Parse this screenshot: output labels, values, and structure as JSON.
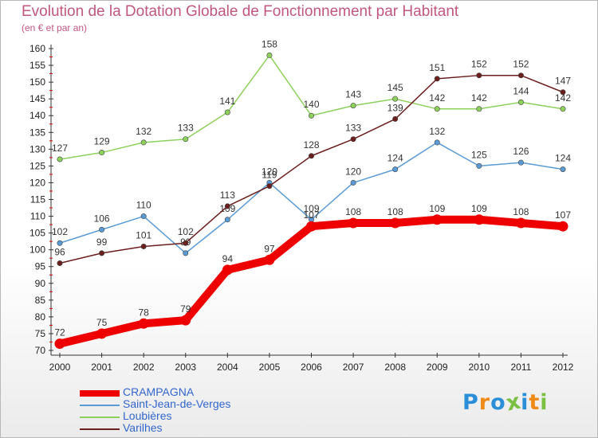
{
  "chart_data": {
    "type": "line",
    "title": "Evolution de la Dotation Globale de Fonctionnement par Habitant",
    "subtitle": "(en € et par an)",
    "xlabel": "",
    "ylabel": "",
    "x": [
      "2000",
      "2001",
      "2002",
      "2003",
      "2004",
      "2005",
      "2006",
      "2007",
      "2008",
      "2009",
      "2010",
      "2011",
      "2012"
    ],
    "ylim": [
      70,
      160
    ],
    "yticks": [
      70,
      75,
      80,
      85,
      90,
      95,
      100,
      105,
      110,
      115,
      120,
      125,
      130,
      135,
      140,
      145,
      150,
      155,
      160
    ],
    "grid": false,
    "legend": "bottom-left",
    "series": [
      {
        "name": "CRAMPAGNA",
        "color": "#ee0000",
        "values": [
          72,
          75,
          78,
          79,
          94,
          97,
          107,
          108,
          108,
          109,
          109,
          108,
          107
        ]
      },
      {
        "name": "Saint-Jean-de-Verges",
        "color": "#5b9bd5",
        "values": [
          102,
          106,
          110,
          99,
          109,
          120,
          109,
          120,
          124,
          132,
          125,
          126,
          124
        ]
      },
      {
        "name": "Loubières",
        "color": "#8ed05c",
        "values": [
          127,
          129,
          132,
          133,
          141,
          158,
          140,
          143,
          145,
          142,
          142,
          144,
          142
        ]
      },
      {
        "name": "Varilhes",
        "color": "#6b1e1e",
        "values": [
          96,
          99,
          101,
          102,
          113,
          119,
          128,
          133,
          139,
          151,
          152,
          152,
          147
        ]
      }
    ]
  },
  "logo": {
    "text": "Proxiti",
    "letters": [
      "P",
      "r",
      "o",
      "x",
      "i",
      "t",
      "i"
    ],
    "colors": [
      "#2a8fd8",
      "#f08a16",
      "#2a8fd8",
      "#7ac143",
      "#2a8fd8",
      "#f08a16",
      "#7ac143"
    ]
  }
}
